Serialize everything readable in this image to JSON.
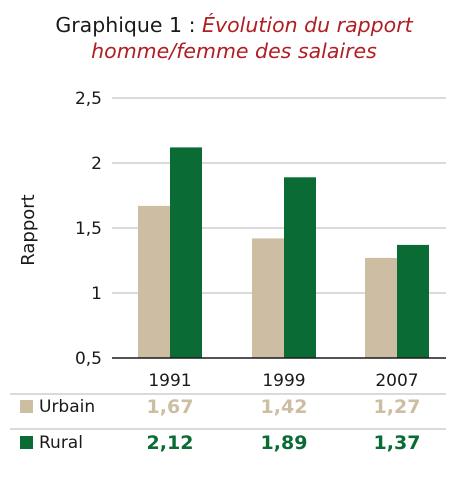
{
  "title": {
    "prefix": "Graphique 1 : ",
    "line1": "Évolution du rapport",
    "line2": "homme/femme des salaires"
  },
  "colors": {
    "urbain": "#cdbda2",
    "rural": "#0b6b35",
    "title_accent": "#b01e23",
    "grid": "#b4b4b4"
  },
  "chart_data": {
    "type": "bar",
    "categories": [
      "1991",
      "1999",
      "2007"
    ],
    "ylabel": "Rapport",
    "ylim": [
      0.5,
      2.5
    ],
    "yticks": [
      "0,5",
      "1",
      "1,5",
      "2",
      "2,5"
    ],
    "grid": true,
    "series": [
      {
        "name": "Urbain",
        "values": [
          1.67,
          1.42,
          1.27
        ],
        "labels": [
          "1,67",
          "1,42",
          "1,27"
        ]
      },
      {
        "name": "Rural",
        "values": [
          2.12,
          1.89,
          1.37
        ],
        "labels": [
          "2,12",
          "1,89",
          "1,37"
        ]
      }
    ]
  }
}
